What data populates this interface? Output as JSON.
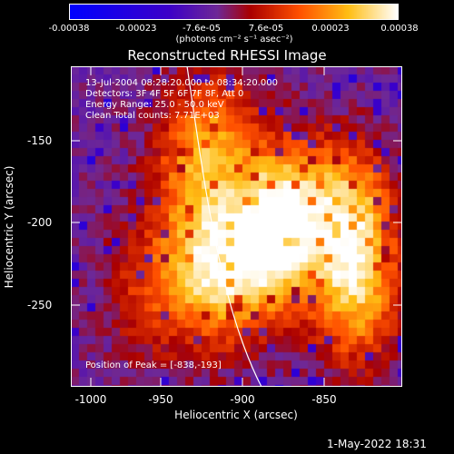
{
  "colorbar": {
    "tick_labels": [
      "-0.00038",
      "-0.00023",
      "-7.6e-05",
      "7.6e-05",
      "0.00023",
      "0.00038"
    ],
    "units": "(photons cm⁻² s⁻¹ asec⁻²)"
  },
  "title": "Reconstructed RHESSI Image",
  "annotations": {
    "time_range": "13-Jul-2004 08:28:20.000 to 08:34:20.000",
    "detectors": "Detectors: 3F 4F 5F 6F 7F 8F, Att 0",
    "energy_range": "Energy Range: 25.0 - 50.0 keV",
    "clean_counts": "Clean     Total counts: 7.71E+03",
    "peak_position": "Position of Peak = [-838,-193]"
  },
  "axes": {
    "xlabel": "Heliocentric X (arcsec)",
    "ylabel": "Heliocentric Y (arcsec)",
    "x_ticks": [
      "-1000",
      "-950",
      "-900",
      "-850"
    ],
    "y_ticks": [
      "-150",
      "-200",
      "-250"
    ]
  },
  "timestamp": "1-May-2022 18:31"
}
